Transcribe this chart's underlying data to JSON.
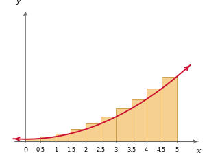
{
  "title": "",
  "xlabel": "x",
  "ylabel": "y",
  "xlim": [
    -0.5,
    5.8
  ],
  "ylim": [
    -1.5,
    55
  ],
  "n_rectangles": 10,
  "x_start": 0,
  "x_end": 5,
  "bar_color": "#F5D090",
  "bar_edgecolor": "#C8953A",
  "curve_color": "#CC1133",
  "tick_positions": [
    0.5,
    1,
    1.5,
    2,
    2.5,
    3,
    3.5,
    4,
    4.5,
    5
  ],
  "tick_labels": [
    "0.5",
    "1",
    "1.5",
    "2",
    "2.5",
    "3",
    "3.5",
    "4",
    "4.5",
    "5"
  ],
  "zero_label": "0",
  "figsize": [
    3.02,
    2.23
  ],
  "dpi": 100
}
